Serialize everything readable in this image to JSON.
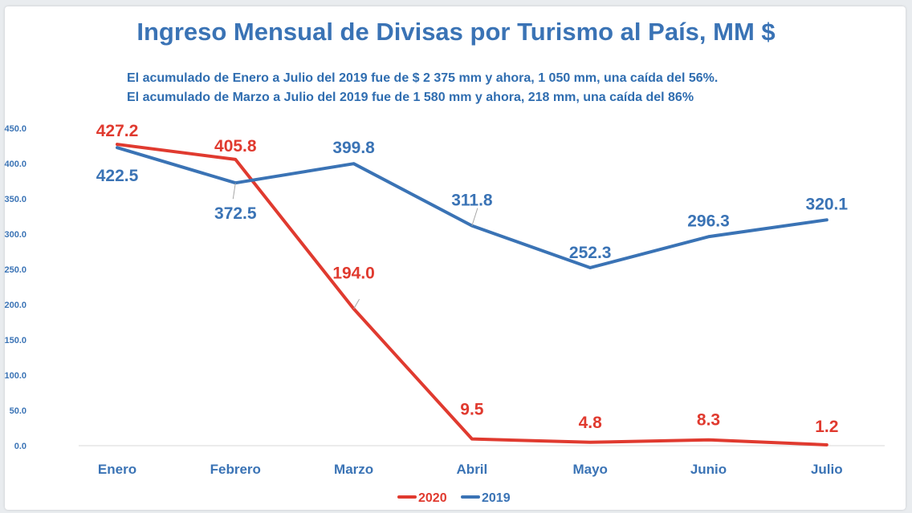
{
  "chart_data": {
    "type": "line",
    "title": "Ingreso Mensual de Divisas por Turismo al País, MM $",
    "subtitle_lines": [
      "El acumulado de Enero a Julio del 2019 fue de $ 2 375 mm  y ahora, 1 050 mm, una caída del 56%.",
      "El acumulado de Marzo a Julio del 2019 fue de 1 580 mm y ahora, 218 mm, una caída del 86%"
    ],
    "categories": [
      "Enero",
      "Febrero",
      "Marzo",
      "Abril",
      "Mayo",
      "Junio",
      "Julio"
    ],
    "series": [
      {
        "name": "2020",
        "values": [
          427.2,
          405.8,
          194.0,
          9.5,
          4.8,
          8.3,
          1.2
        ],
        "labels": [
          "427.2",
          "405.8",
          "194.0",
          "9.5",
          "4.8",
          "8.3",
          "1.2"
        ],
        "color": "#e03a2f"
      },
      {
        "name": "2019",
        "values": [
          422.5,
          372.5,
          399.8,
          311.8,
          252.3,
          296.3,
          320.1
        ],
        "labels": [
          "422.5",
          "372.5",
          "399.8",
          "311.8",
          "252.3",
          "296.3",
          "320.1"
        ],
        "color": "#3a73b5"
      }
    ],
    "yticks": [
      "0.0",
      "50.0",
      "100.0",
      "150.0",
      "200.0",
      "250.0",
      "300.0",
      "350.0",
      "400.0",
      "450.0"
    ],
    "ylim": [
      0,
      450
    ],
    "grid": false,
    "legend_position": "bottom"
  }
}
